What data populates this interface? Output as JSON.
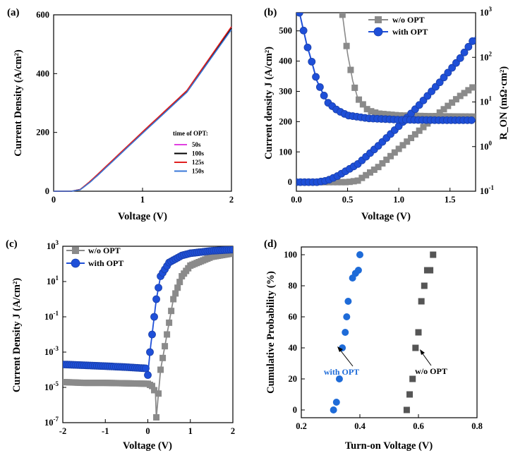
{
  "panels": {
    "a": {
      "tag": "(a)"
    },
    "b": {
      "tag": "(b)"
    },
    "c": {
      "tag": "(c)"
    },
    "d": {
      "tag": "(d)"
    }
  },
  "chart_data": [
    {
      "id": "a",
      "type": "line",
      "xlabel": "Voltage (V)",
      "ylabel": "Current Density (A/cm²)",
      "xlim": [
        0,
        2
      ],
      "ylim": [
        0,
        600
      ],
      "xticks": [
        "0",
        "1",
        "2"
      ],
      "yticks": [
        "0",
        "200",
        "400",
        "600"
      ],
      "legend_title": "time of OPT:",
      "legend_position": "lower-right",
      "series": [
        {
          "name": "50s",
          "color": "#e040e0",
          "x": [
            0,
            0.2,
            0.3,
            0.4,
            0.5,
            1.0,
            1.5,
            2.0
          ],
          "y": [
            0,
            0,
            6,
            30,
            58,
            200,
            340,
            557
          ]
        },
        {
          "name": "100s",
          "color": "#000000",
          "x": [
            0,
            0.2,
            0.3,
            0.4,
            0.5,
            1.0,
            1.5,
            2.0
          ],
          "y": [
            0,
            0,
            6,
            30,
            58,
            200,
            341,
            556
          ]
        },
        {
          "name": "125s",
          "color": "#e02020",
          "x": [
            0,
            0.2,
            0.3,
            0.4,
            0.5,
            1.0,
            1.5,
            2.0
          ],
          "y": [
            0,
            0,
            6,
            31,
            59,
            202,
            343,
            560
          ]
        },
        {
          "name": "150s",
          "color": "#3a78d8",
          "x": [
            0,
            0.2,
            0.3,
            0.4,
            0.5,
            1.0,
            1.5,
            2.0
          ],
          "y": [
            0,
            0,
            5,
            28,
            55,
            197,
            337,
            550
          ]
        }
      ]
    },
    {
      "id": "b",
      "type": "line",
      "xlabel": "Voltage (V)",
      "ylabel": "Current density J (A/cm²)",
      "y2label": "R_ON (mΩ·cm²)",
      "xlim": [
        0,
        1.75
      ],
      "ylim": [
        -30,
        560
      ],
      "y2lim_log": [
        0.1,
        1000
      ],
      "xticks": [
        "0.0",
        "0.5",
        "1.0",
        "1.5"
      ],
      "yticks": [
        "0",
        "100",
        "200",
        "300",
        "400",
        "500"
      ],
      "y2ticks": [
        "10",
        "10",
        "10",
        "10",
        "10"
      ],
      "y2tick_exps": [
        "-1",
        "0",
        "1",
        "2",
        "3"
      ],
      "legend_position": "top-right",
      "series": [
        {
          "name": "w/o OPT",
          "color": "#8a8a8a",
          "marker": "square",
          "jv": {
            "x": [
              0,
              0.3,
              0.5,
              0.6,
              0.8,
              1.0,
              1.2,
              1.4,
              1.6,
              1.75
            ],
            "y": [
              0,
              0,
              0,
              5,
              50,
              110,
              170,
              230,
              285,
              320
            ]
          },
          "ron": {
            "x": [
              0.45,
              0.5,
              0.55,
              0.6,
              0.7,
              0.8,
              1.0,
              1.3,
              1.75
            ],
            "y": [
              900,
              120,
              30,
              12,
              6.5,
              5.5,
              5,
              4.8,
              4.7
            ]
          }
        },
        {
          "name": "with OPT",
          "color": "#1e4fd8",
          "marker": "circle",
          "jv": {
            "x": [
              0,
              0.2,
              0.3,
              0.4,
              0.6,
              0.8,
              1.0,
              1.2,
              1.4,
              1.6,
              1.75
            ],
            "y": [
              0,
              0,
              5,
              20,
              60,
              120,
              185,
              255,
              330,
              410,
              480
            ]
          },
          "ron": {
            "x": [
              0.03,
              0.1,
              0.15,
              0.2,
              0.3,
              0.4,
              0.5,
              0.7,
              1.0,
              1.4,
              1.75
            ],
            "y": [
              1000,
              200,
              80,
              30,
              10,
              6.5,
              5,
              4.3,
              4,
              3.9,
              3.9
            ]
          }
        }
      ]
    },
    {
      "id": "c",
      "type": "line",
      "xlabel": "Voltage (V)",
      "ylabel": "Current Density J (A/cm²)",
      "xlim": [
        -2,
        2
      ],
      "ylim_log": [
        1e-07,
        1000
      ],
      "xticks": [
        "-2",
        "-1",
        "0",
        "1",
        "2"
      ],
      "yticks": [
        "10",
        "10",
        "10",
        "10",
        "10",
        "10"
      ],
      "ytick_exps": [
        "-7",
        "-5",
        "-3",
        "-1",
        "1",
        "3"
      ],
      "legend_position": "top-left",
      "series": [
        {
          "name": "w/o OPT",
          "color": "#8a8a8a",
          "marker": "square",
          "x": [
            -2,
            -1.5,
            -1,
            -0.5,
            0,
            0.1,
            0.18,
            0.2,
            0.3,
            0.45,
            0.6,
            0.8,
            1.0,
            1.5,
            2.0
          ],
          "y": [
            2e-05,
            1.8e-05,
            1.8e-05,
            1.7e-05,
            1.6e-05,
            1.2e-05,
            5e-06,
            2e-07,
            0.0001,
            0.01,
            1,
            20,
            80,
            250,
            400
          ]
        },
        {
          "name": "with OPT",
          "color": "#1e4fd8",
          "marker": "circle",
          "x": [
            -2,
            -1.5,
            -1,
            -0.5,
            -0.05,
            0,
            0.05,
            0.1,
            0.2,
            0.3,
            0.5,
            0.8,
            1.0,
            1.5,
            2.0
          ],
          "y": [
            0.0002,
            0.00018,
            0.00016,
            0.00014,
            0.00012,
            5e-05,
            0.001,
            0.01,
            1,
            20,
            120,
            300,
            400,
            550,
            650
          ]
        }
      ]
    },
    {
      "id": "d",
      "type": "scatter",
      "xlabel": "Turn-on Voltage (V)",
      "ylabel": "Cumulative Probability (%)",
      "xlim": [
        0.2,
        0.8
      ],
      "ylim": [
        -5,
        105
      ],
      "xticks": [
        "0.2",
        "0.4",
        "0.6",
        "0.8"
      ],
      "yticks": [
        "0",
        "20",
        "40",
        "60",
        "80",
        "100"
      ],
      "series": [
        {
          "name": "with OPT",
          "color": "#1e6bd8",
          "marker": "circle",
          "x": [
            0.31,
            0.32,
            0.33,
            0.34,
            0.35,
            0.355,
            0.36,
            0.375,
            0.385,
            0.395,
            0.4
          ],
          "y": [
            0,
            5,
            20,
            40,
            50,
            60,
            70,
            85,
            88,
            90,
            100
          ]
        },
        {
          "name": "w/o OPT",
          "color": "#555555",
          "marker": "square",
          "x": [
            0.56,
            0.57,
            0.58,
            0.59,
            0.6,
            0.61,
            0.62,
            0.63,
            0.64,
            0.65
          ],
          "y": [
            0,
            10,
            20,
            40,
            50,
            70,
            80,
            90,
            90,
            100
          ]
        }
      ],
      "annotations": [
        {
          "text": "with OPT",
          "color": "#1e6bd8"
        },
        {
          "text": "w/o OPT",
          "color": "#000000"
        }
      ]
    }
  ]
}
